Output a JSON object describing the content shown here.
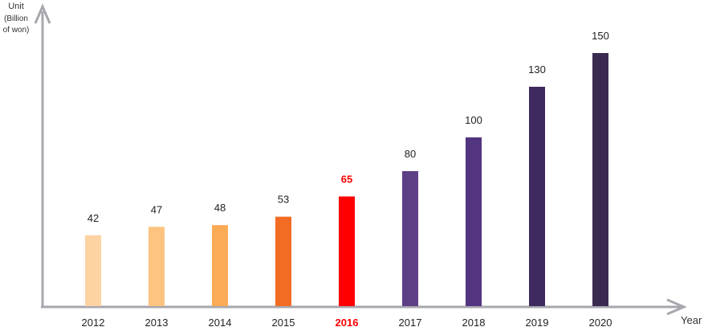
{
  "chart_data": {
    "type": "bar",
    "ylabel": "Unit",
    "ylabel_unit_line1": "(Billion",
    "ylabel_unit_line2": "of won)",
    "xlabel": "Year",
    "categories": [
      "2012",
      "2013",
      "2014",
      "2015",
      "2016",
      "2017",
      "2018",
      "2019",
      "2020"
    ],
    "values": [
      42,
      47,
      48,
      53,
      65,
      80,
      100,
      130,
      150
    ],
    "value_labels": [
      "42",
      "47",
      "48",
      "53",
      "65",
      "80",
      "100",
      "130",
      "150"
    ],
    "colors": [
      "#fdd3a3",
      "#fcc480",
      "#fbaa55",
      "#f36c24",
      "#ff0000",
      "#5f3f86",
      "#523480",
      "#3e2a5e",
      "#3a2a50"
    ],
    "highlight_category": "2016",
    "highlight_color": "#ff0000",
    "axis_color": "#a7a7ae",
    "grid": false,
    "legend": "none"
  }
}
